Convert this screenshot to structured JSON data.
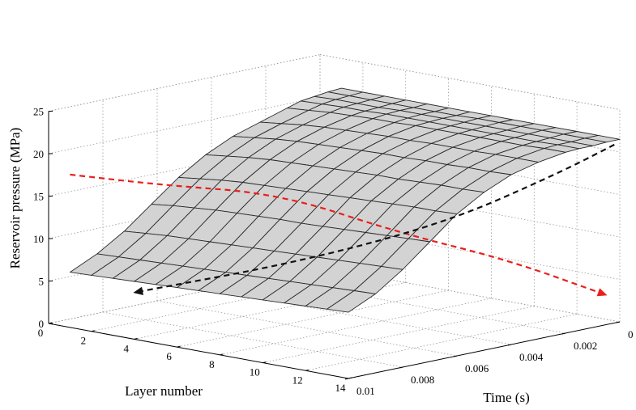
{
  "chart_data": {
    "type": "surface3d",
    "title": "",
    "xlabel": "Layer number",
    "ylabel": "Time (s)",
    "zlabel": "Reservoir pressure (MPa)",
    "x_ticks": [
      "0",
      "2",
      "4",
      "6",
      "8",
      "10",
      "12",
      "14"
    ],
    "y_ticks": [
      "0",
      "0.002",
      "0.004",
      "0.006",
      "0.008",
      "0.01"
    ],
    "z_ticks": [
      "0",
      "5",
      "10",
      "15",
      "20",
      "25"
    ],
    "xlim": [
      0,
      14
    ],
    "ylim": [
      0,
      0.01
    ],
    "zlim": [
      0,
      25
    ],
    "grid": true,
    "surface_color": "#d3d3d3",
    "edge_color": "#2a2a2a",
    "layers": [
      1,
      2,
      3,
      4,
      5,
      6,
      7,
      8,
      9,
      10,
      11,
      12,
      13,
      14
    ],
    "times": [
      0,
      0.0005,
      0.001,
      0.0015,
      0.002,
      0.003,
      0.004,
      0.005,
      0.006,
      0.007,
      0.008,
      0.009,
      0.01
    ],
    "pressure": [
      [
        21.5,
        21.4,
        21.2,
        21.0,
        20.5,
        19.5,
        18.5,
        17.0,
        15.0,
        12.5,
        10.0,
        8.0,
        6.5
      ],
      [
        21.5,
        21.4,
        21.3,
        21.1,
        20.7,
        19.8,
        18.8,
        17.3,
        15.3,
        12.8,
        10.2,
        8.1,
        6.6
      ],
      [
        21.5,
        21.4,
        21.3,
        21.2,
        20.9,
        20.1,
        19.1,
        17.6,
        15.6,
        13.0,
        10.4,
        8.2,
        6.7
      ],
      [
        21.5,
        21.4,
        21.3,
        21.2,
        21.0,
        20.3,
        19.3,
        17.8,
        15.8,
        13.2,
        10.5,
        8.3,
        6.8
      ],
      [
        21.5,
        21.4,
        21.4,
        21.3,
        21.1,
        20.4,
        19.4,
        17.9,
        15.9,
        13.3,
        10.6,
        8.4,
        6.9
      ],
      [
        21.5,
        21.4,
        21.4,
        21.3,
        21.1,
        20.5,
        19.5,
        18.0,
        16.0,
        13.4,
        10.7,
        8.5,
        7.0
      ],
      [
        21.5,
        21.4,
        21.4,
        21.3,
        21.2,
        20.6,
        19.6,
        18.1,
        16.1,
        13.5,
        10.8,
        8.6,
        7.1
      ],
      [
        21.5,
        21.5,
        21.4,
        21.3,
        21.2,
        20.6,
        19.7,
        18.2,
        16.2,
        13.5,
        10.9,
        8.7,
        7.2
      ],
      [
        21.5,
        21.5,
        21.4,
        21.3,
        21.2,
        20.7,
        19.7,
        18.3,
        16.3,
        13.6,
        11.0,
        8.8,
        7.3
      ],
      [
        21.5,
        21.5,
        21.4,
        21.3,
        21.2,
        20.7,
        19.8,
        18.3,
        16.4,
        13.7,
        11.1,
        8.9,
        7.4
      ],
      [
        21.5,
        21.5,
        21.4,
        21.3,
        21.2,
        20.7,
        19.8,
        18.4,
        16.5,
        13.8,
        11.2,
        9.0,
        7.5
      ],
      [
        21.5,
        21.5,
        21.4,
        21.3,
        21.2,
        20.8,
        19.9,
        18.5,
        16.6,
        13.9,
        11.3,
        9.1,
        7.6
      ],
      [
        21.5,
        21.5,
        21.4,
        21.4,
        21.3,
        20.8,
        19.9,
        18.5,
        16.6,
        14.0,
        11.4,
        9.2,
        7.7
      ],
      [
        21.5,
        21.5,
        21.4,
        21.4,
        21.3,
        20.8,
        20.0,
        18.6,
        16.7,
        14.1,
        11.5,
        9.3,
        7.8
      ]
    ],
    "annotations": [
      {
        "color": "#e8201c",
        "style": "dashed-arrow",
        "points": [
          [
            1,
            0.01,
            18.0
          ],
          [
            4,
            0.009,
            17.5
          ],
          [
            7,
            0.007,
            16.5
          ],
          [
            10,
            0.005,
            12.0
          ],
          [
            12,
            0.0025,
            8.0
          ],
          [
            14,
            0.0005,
            3.5
          ]
        ]
      },
      {
        "color": "#111111",
        "style": "dashed-arrow",
        "points": [
          [
            14,
            0.0002,
            21.0
          ],
          [
            13,
            0.0015,
            18.0
          ],
          [
            11,
            0.004,
            13.0
          ],
          [
            8,
            0.007,
            9.0
          ],
          [
            4,
            0.01,
            5.5
          ]
        ]
      }
    ]
  }
}
